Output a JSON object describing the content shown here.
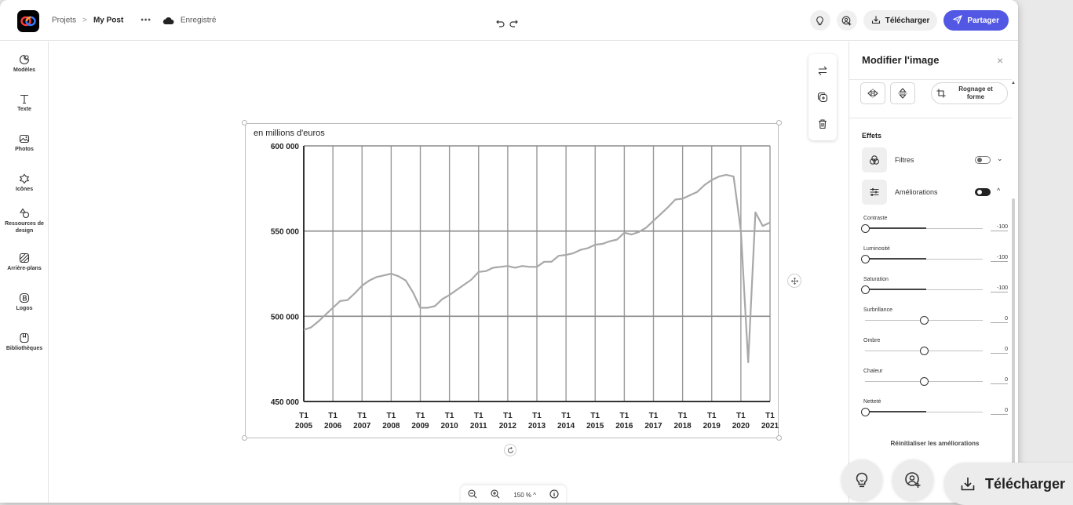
{
  "topbar": {
    "breadcrumb_root": "Projets",
    "breadcrumb_separator": ">",
    "project_name": "My Post",
    "more": "•••",
    "save_status": "Enregistré",
    "download_label": "Télécharger",
    "share_label": "Partager",
    "accent_color": "#5258e4"
  },
  "sidebar": {
    "items": [
      {
        "label": "Modèles",
        "icon": "templates-icon"
      },
      {
        "label": "Texte",
        "icon": "text-icon"
      },
      {
        "label": "Photos",
        "icon": "photos-icon"
      },
      {
        "label": "Icônes",
        "icon": "icons-icon"
      },
      {
        "label": "Ressources de design",
        "icon": "design-assets-icon"
      },
      {
        "label": "Arrière-plans",
        "icon": "backgrounds-icon"
      },
      {
        "label": "Logos",
        "icon": "logos-icon"
      },
      {
        "label": "Bibliothèques",
        "icon": "libraries-icon"
      }
    ]
  },
  "zoom": {
    "level": "150 %",
    "caret": "^"
  },
  "panel": {
    "title": "Modifier l'image",
    "close": "×",
    "crop_label": "Rognage et forme",
    "effects_label": "Effets",
    "filters_label": "Filtres",
    "filters_on": false,
    "filters_caret": "⌄",
    "enhancements_label": "Améliorations",
    "enhancements_on": true,
    "enhancements_caret": "^",
    "sliders": [
      {
        "label": "Contraste",
        "value": "-100",
        "level": -100
      },
      {
        "label": "Luminosité",
        "value": "-100",
        "level": -100
      },
      {
        "label": "Saturation",
        "value": "-100",
        "level": -100
      },
      {
        "label": "Surbrillance",
        "value": "0",
        "level": 0
      },
      {
        "label": "Ombre",
        "value": "0",
        "level": 0
      },
      {
        "label": "Chaleur",
        "value": "0",
        "level": 0
      },
      {
        "label": "Netteté",
        "value": "0",
        "level": -100
      }
    ],
    "reset_label": "Réinitialiser les améliorations"
  },
  "overlay": {
    "download_label": "Télécharger"
  },
  "chart_data": {
    "type": "line",
    "title": "",
    "ylabel": "en millions d'euros",
    "xlabel": "",
    "ylim": [
      450000,
      600000
    ],
    "xlim": [
      2005,
      2021
    ],
    "y_ticks": [
      "600 000",
      "550 000",
      "500 000",
      "450 000"
    ],
    "y_tick_values": [
      600000,
      550000,
      500000,
      450000
    ],
    "x_ticks_top": [
      "T1",
      "T1",
      "T1",
      "T1",
      "T1",
      "T1",
      "T1",
      "T1",
      "T1",
      "T1",
      "T1",
      "T1",
      "T1",
      "T1",
      "T1",
      "T1",
      "T1"
    ],
    "x_ticks_bottom": [
      "2005",
      "2006",
      "2007",
      "2008",
      "2009",
      "2010",
      "2011",
      "2012",
      "2013",
      "2014",
      "2015",
      "2016",
      "2017",
      "2018",
      "2019",
      "2020",
      "2021"
    ],
    "grid": true,
    "series": [
      {
        "color": "#a8a8a8",
        "x": [
          2005,
          2005.25,
          2005.5,
          2005.75,
          2006,
          2006.25,
          2006.5,
          2006.75,
          2007,
          2007.25,
          2007.5,
          2007.75,
          2008,
          2008.25,
          2008.5,
          2008.75,
          2009,
          2009.25,
          2009.5,
          2009.75,
          2010,
          2010.25,
          2010.5,
          2010.75,
          2011,
          2011.25,
          2011.5,
          2011.75,
          2012,
          2012.25,
          2012.5,
          2012.75,
          2013,
          2013.25,
          2013.5,
          2013.75,
          2014,
          2014.25,
          2014.5,
          2014.75,
          2015,
          2015.25,
          2015.5,
          2015.75,
          2016,
          2016.25,
          2016.5,
          2016.75,
          2017,
          2017.25,
          2017.5,
          2017.75,
          2018,
          2018.25,
          2018.5,
          2018.75,
          2019,
          2019.25,
          2019.5,
          2019.75,
          2020,
          2020.25,
          2020.5,
          2020.75,
          2021
        ],
        "y": [
          492000,
          493500,
          497000,
          501000,
          505000,
          509000,
          509500,
          513500,
          518000,
          521000,
          523000,
          524000,
          525000,
          523500,
          521000,
          514000,
          505000,
          505000,
          506000,
          510000,
          512500,
          515500,
          518500,
          521500,
          526000,
          526500,
          528500,
          529000,
          529500,
          528500,
          529500,
          529000,
          529000,
          532000,
          532000,
          535500,
          536000,
          537000,
          539000,
          540000,
          542000,
          542500,
          544000,
          545000,
          549000,
          548000,
          549500,
          552000,
          556000,
          560000,
          564000,
          568500,
          569000,
          571000,
          573000,
          577000,
          580000,
          582000,
          583000,
          582000,
          550000,
          473000,
          561000,
          553000,
          555000
        ]
      }
    ]
  }
}
